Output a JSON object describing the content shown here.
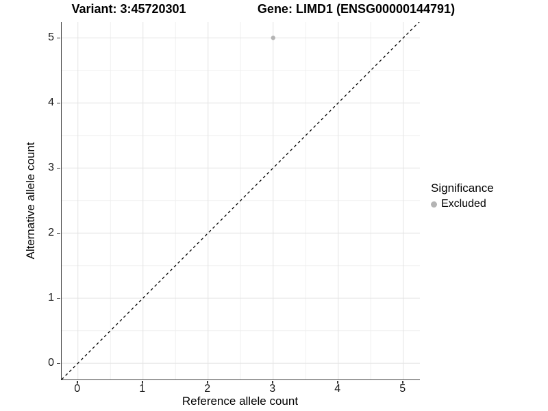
{
  "titles": {
    "variant": "Variant: 3:45720301",
    "gene": "Gene: LIMD1 (ENSG00000144791)"
  },
  "legend": {
    "title": "Significance",
    "items": [
      {
        "label": "Excluded",
        "color": "#b4b4b4"
      }
    ]
  },
  "colors": {
    "grid_major": "#e3e3e3",
    "grid_minor": "#f0f0f0",
    "axis_line": "#3d3d3d",
    "reference_line": "#000000",
    "point": "#b4b4b4"
  },
  "chart_data": {
    "type": "scatter",
    "title": "Variant: 3:45720301   Gene: LIMD1 (ENSG00000144791)",
    "xlabel": "Reference allele count",
    "ylabel": "Alternative allele count",
    "xlim": [
      -0.25,
      5.25
    ],
    "ylim": [
      -0.25,
      5.25
    ],
    "xticks": [
      0,
      1,
      2,
      3,
      4,
      5
    ],
    "yticks": [
      0,
      1,
      2,
      3,
      4,
      5
    ],
    "grid": "major+minor",
    "legend_position": "right",
    "legend_title": "Significance",
    "series": [
      {
        "name": "Excluded",
        "color": "#b4b4b4",
        "points": [
          {
            "x": 3,
            "y": 5
          }
        ]
      }
    ],
    "reference_line": {
      "kind": "identity",
      "style": "dashed",
      "color": "#000000"
    }
  }
}
